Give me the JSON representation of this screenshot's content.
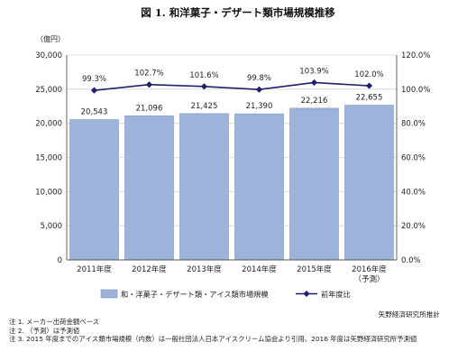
{
  "chart_data": {
    "type": "bar",
    "title": "図 1. 和洋菓子・デザート類市場規模推移",
    "ylabel": "（億円）",
    "categories": [
      "2011年度",
      "2012年度",
      "2013年度",
      "2014年度",
      "2015年度",
      "2016年度\n（予測）"
    ],
    "series": [
      {
        "name": "和・洋菓子・デザート類・アイス類市場規模",
        "type": "bar",
        "values": [
          20543,
          21096,
          21425,
          21390,
          22216,
          22655
        ],
        "labels": [
          "20,543",
          "21,096",
          "21,425",
          "21,390",
          "22,216",
          "22,655"
        ],
        "color": "#9db3d9"
      },
      {
        "name": "前年度比",
        "type": "line",
        "axis": "right",
        "values": [
          99.3,
          102.7,
          101.6,
          99.8,
          103.9,
          102.0
        ],
        "labels": [
          "99.3%",
          "102.7%",
          "101.6%",
          "99.8%",
          "103.9%",
          "102.0%"
        ],
        "color": "#1f1f6e"
      }
    ],
    "ylim": [
      0,
      30000
    ],
    "yticks": [
      "0",
      "5,000",
      "10,000",
      "15,000",
      "20,000",
      "25,000",
      "30,000"
    ],
    "y2lim": [
      0,
      120
    ],
    "y2ticks": [
      "0.0%",
      "20.0%",
      "40.0%",
      "60.0%",
      "80.0%",
      "100.0%",
      "120.0%"
    ],
    "grid": true,
    "legend": "bottom",
    "source": "矢野経済研究所推計",
    "notes": [
      "注 1. メーカー出荷金額ベース",
      "注 2. （予測）は予測値",
      "注 3. 2015 年度までのアイス類市場規模（内数）は一般社団法人日本アイスクリーム協会より引用、2016 年度は矢野経済研究所予測値"
    ]
  }
}
